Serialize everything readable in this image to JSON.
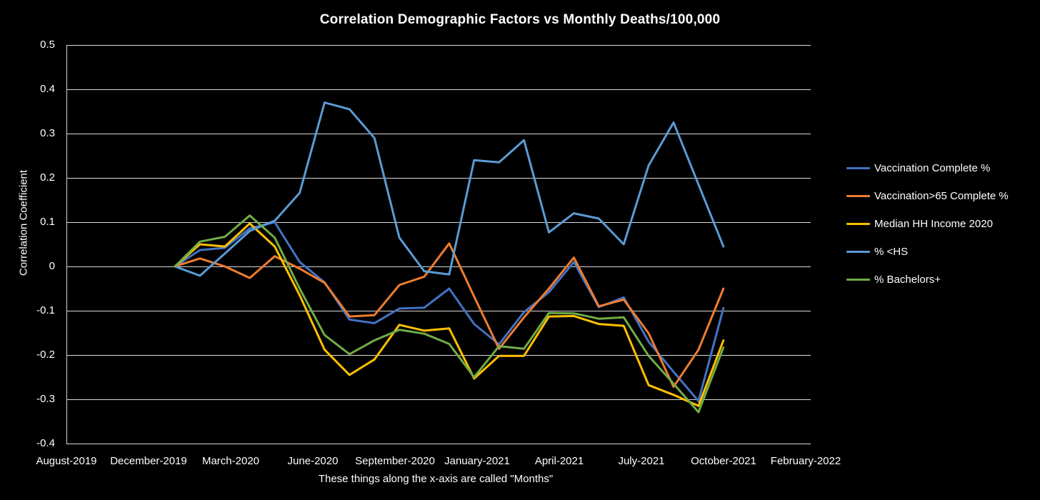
{
  "title": "Correlation Demographic Factors vs Monthly Deaths/100,000",
  "y_axis": {
    "title": "Correlation  Coefficient",
    "ticks": [
      {
        "label": "0.5",
        "value": 0.5
      },
      {
        "label": "0.4",
        "value": 0.4
      },
      {
        "label": "0.3",
        "value": 0.3
      },
      {
        "label": "0.2",
        "value": 0.2
      },
      {
        "label": "0.1",
        "value": 0.1
      },
      {
        "label": "0",
        "value": 0.0
      },
      {
        "label": "-0.1",
        "value": -0.1
      },
      {
        "label": "-0.2",
        "value": -0.2
      },
      {
        "label": "-0.3",
        "value": -0.3
      },
      {
        "label": "-0.4",
        "value": -0.4
      }
    ]
  },
  "x_axis": {
    "title": "These things  along the x-axis are called \"Months\"",
    "tick_labels": [
      "August-2019",
      "December-2019",
      "March-2020",
      "June-2020",
      "September-2020",
      "January-2021",
      "April-2021",
      "July-2021",
      "October-2021",
      "February-2022"
    ]
  },
  "colors": {
    "background": "#000000",
    "gridline": "#d9d9d9",
    "text": "#ffffff"
  },
  "chart_data": {
    "type": "line",
    "title": "Correlation Demographic Factors vs Monthly Deaths/100,000",
    "xlabel": "These things  along the x-axis are called \"Months\"",
    "ylabel": "Correlation  Coefficient",
    "ylim": [
      -0.4,
      0.5
    ],
    "grid": true,
    "legend_position": "right",
    "categories": [
      "Dec-2019",
      "Jan-2020",
      "Feb-2020",
      "Mar-2020",
      "Apr-2020",
      "May-2020",
      "Jun-2020",
      "Jul-2020",
      "Aug-2020",
      "Sep-2020",
      "Oct-2020",
      "Nov-2020",
      "Dec-2020",
      "Jan-2021",
      "Feb-2021",
      "Mar-2021",
      "Apr-2021",
      "May-2021",
      "Jun-2021",
      "Jul-2021",
      "Aug-2021",
      "Sep-2021",
      "Oct-2021"
    ],
    "series": [
      {
        "name": "Vaccination Complete %",
        "color": "#4472C4",
        "values": [
          0,
          0.037,
          0.042,
          0.086,
          0.1,
          0.01,
          -0.036,
          -0.12,
          -0.128,
          -0.095,
          -0.093,
          -0.05,
          -0.13,
          -0.176,
          -0.103,
          -0.058,
          0.01,
          -0.092,
          -0.07,
          -0.17,
          -0.238,
          -0.304,
          -0.094
        ]
      },
      {
        "name": "Vaccination>65 Complete %",
        "color": "#ED7D31",
        "values": [
          0,
          0.018,
          0.0,
          -0.026,
          0.023,
          -0.005,
          -0.037,
          -0.113,
          -0.11,
          -0.042,
          -0.023,
          0.052,
          -0.068,
          -0.186,
          -0.115,
          -0.05,
          0.02,
          -0.09,
          -0.075,
          -0.151,
          -0.272,
          -0.188,
          -0.05
        ]
      },
      {
        "name": "Median HH Income 2020",
        "color": "#FFC000",
        "values": [
          0,
          0.05,
          0.045,
          0.097,
          0.045,
          -0.065,
          -0.188,
          -0.245,
          -0.21,
          -0.132,
          -0.145,
          -0.14,
          -0.253,
          -0.202,
          -0.202,
          -0.113,
          -0.112,
          -0.13,
          -0.134,
          -0.268,
          -0.29,
          -0.315,
          -0.167
        ]
      },
      {
        "name": "% <HS",
        "color": "#5B9BD5",
        "values": [
          0,
          -0.021,
          0.029,
          0.08,
          0.103,
          0.166,
          0.37,
          0.355,
          0.29,
          0.065,
          -0.011,
          -0.018,
          0.24,
          0.235,
          0.285,
          0.077,
          0.12,
          0.108,
          0.05,
          0.228,
          0.325,
          0.185,
          0.045
        ]
      },
      {
        "name": "% Bachelors+",
        "color": "#70AD47",
        "values": [
          0,
          0.056,
          0.067,
          0.115,
          0.065,
          -0.05,
          -0.155,
          -0.198,
          -0.167,
          -0.143,
          -0.152,
          -0.175,
          -0.25,
          -0.18,
          -0.186,
          -0.105,
          -0.106,
          -0.118,
          -0.115,
          -0.202,
          -0.265,
          -0.329,
          -0.183
        ]
      }
    ]
  }
}
